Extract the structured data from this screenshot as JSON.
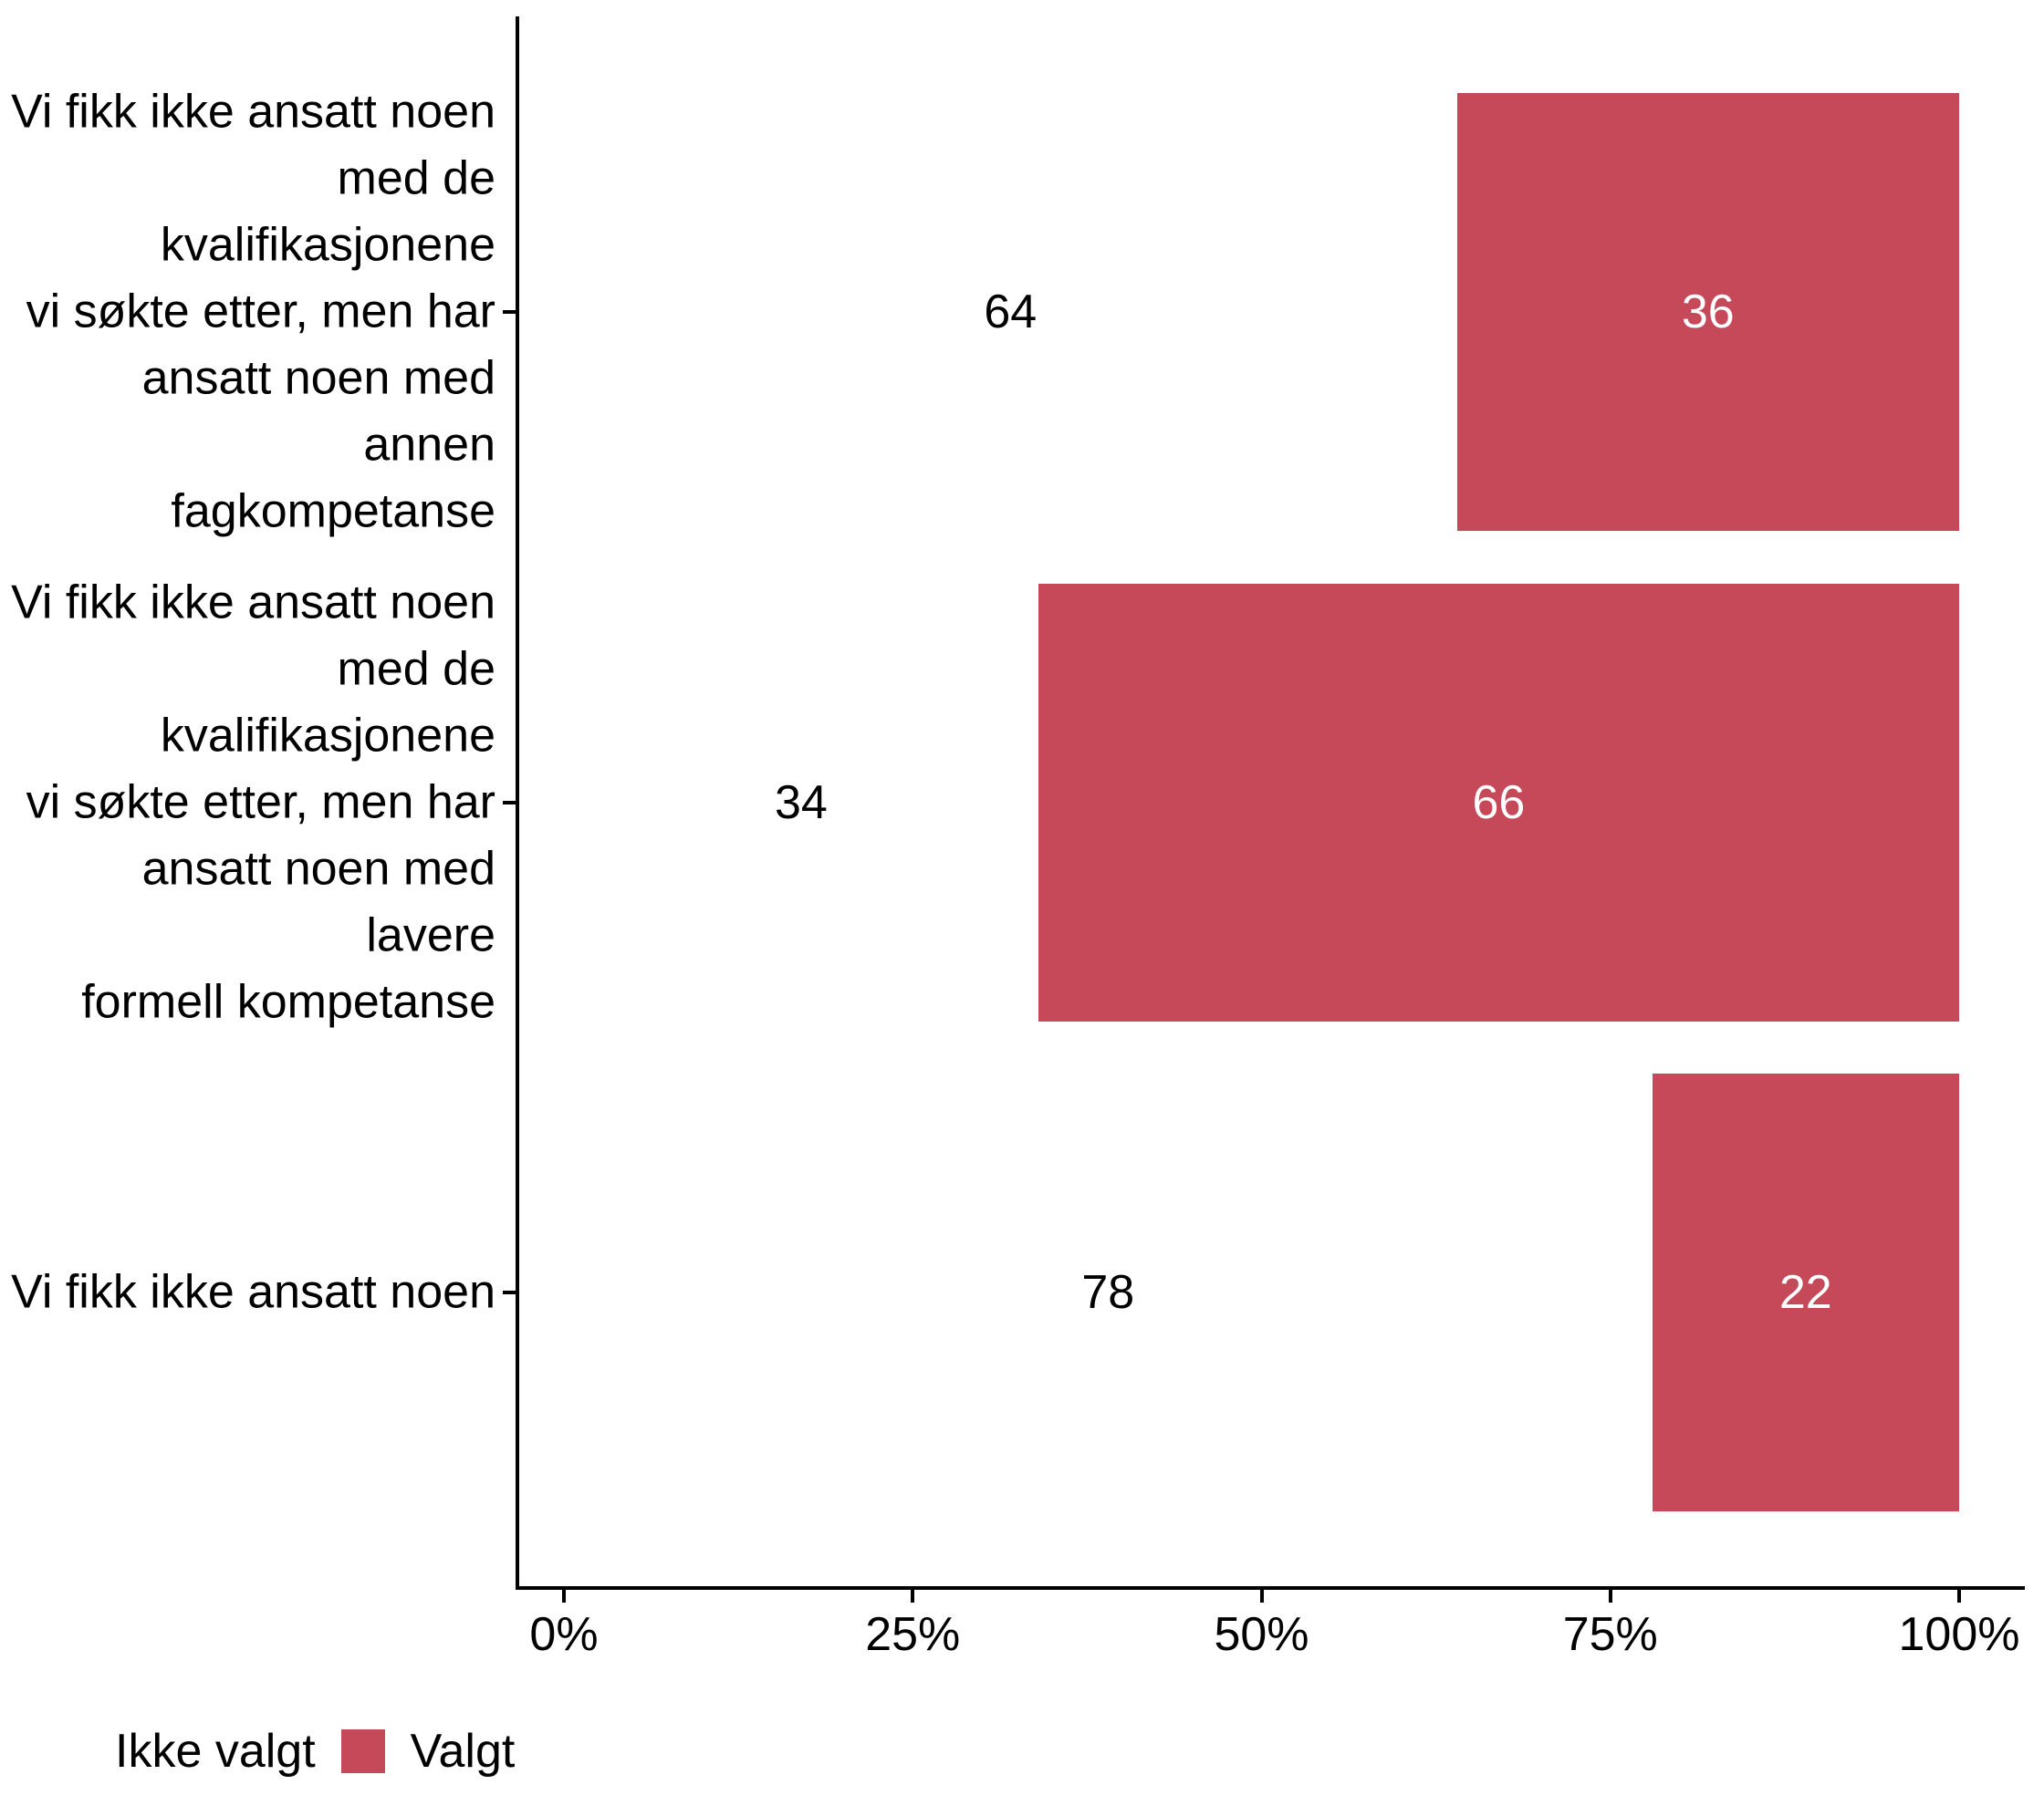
{
  "chart_data": {
    "type": "bar",
    "orientation": "horizontal",
    "stacked": true,
    "title": "",
    "categories": [
      "Vi fikk ikke ansatt noen med de kvalifikasjonene vi søkte etter, men har ansatt noen med annen fagkompetanse",
      "Vi fikk ikke ansatt noen med de kvalifikasjonene vi søkte etter, men har ansatt noen med lavere formell kompetanse",
      "Vi fikk ikke ansatt noen"
    ],
    "categories_wrapped": [
      [
        "Vi fikk ikke ansatt noen",
        "med de kvalifikasjonene",
        "vi søkte etter, men har",
        "ansatt noen med annen",
        "fagkompetanse"
      ],
      [
        "Vi fikk ikke ansatt noen",
        "med de kvalifikasjonene",
        "vi søkte etter, men har",
        "ansatt noen med lavere",
        "formell kompetanse"
      ],
      [
        "Vi fikk ikke ansatt noen"
      ]
    ],
    "series": [
      {
        "name": "Ikke valgt",
        "color": "#ffffff",
        "label_color": "#000000",
        "values": [
          64,
          34,
          78
        ]
      },
      {
        "name": "Valgt",
        "color": "#c6495a",
        "label_color": "#ffffff",
        "values": [
          36,
          66,
          22
        ]
      }
    ],
    "x_axis": {
      "tick_labels": [
        "0%",
        "25%",
        "50%",
        "75%",
        "100%"
      ],
      "tick_values": [
        0,
        25,
        50,
        75,
        100
      ],
      "range": [
        0,
        100
      ]
    },
    "grid": false,
    "legend": {
      "position": "bottom-left",
      "items": [
        {
          "label": "Ikke valgt",
          "swatch_color": "#ffffff"
        },
        {
          "label": "Valgt",
          "swatch_color": "#c6495a"
        }
      ]
    }
  },
  "colors": {
    "accent_red": "#c6495a",
    "axis": "#000000",
    "text": "#000000",
    "background": "#ffffff",
    "label_on_bar": "#ffffff"
  }
}
